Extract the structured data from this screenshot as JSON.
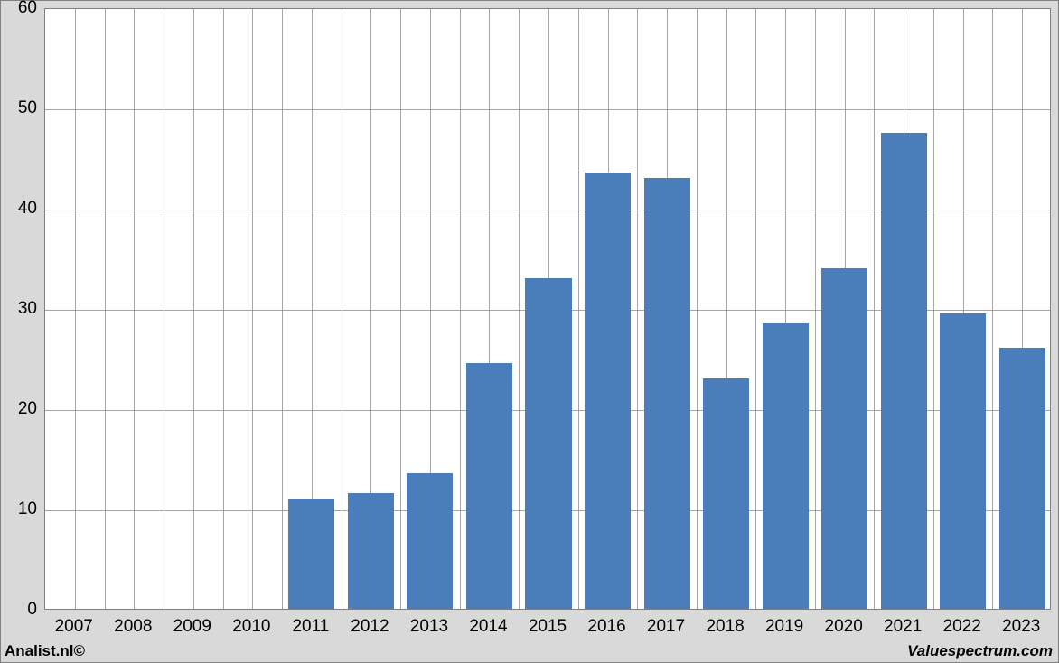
{
  "chart": {
    "type": "bar",
    "categories": [
      "2007",
      "2008",
      "2009",
      "2010",
      "2011",
      "2012",
      "2013",
      "2014",
      "2015",
      "2016",
      "2017",
      "2018",
      "2019",
      "2020",
      "2021",
      "2022",
      "2023"
    ],
    "values": [
      0,
      0,
      0,
      0,
      11.0,
      11.5,
      13.5,
      24.5,
      33.0,
      43.5,
      43.0,
      23.0,
      28.5,
      34.0,
      47.5,
      29.5,
      26.0
    ],
    "bar_color": "#4a7ebb",
    "ylim_min": 0,
    "ylim_max": 60,
    "ytick_step": 10,
    "yticks": [
      0,
      10,
      20,
      30,
      40,
      50,
      60
    ],
    "minor_vgrids_per_bar": 1,
    "grid_color": "#808080",
    "background_color": "#ffffff",
    "outer_background": "#d9d9d9",
    "bar_width_ratio": 0.78,
    "label_fontsize": 19
  },
  "footer": {
    "left": "Analist.nl©",
    "right": "Valuespectrum.com"
  }
}
